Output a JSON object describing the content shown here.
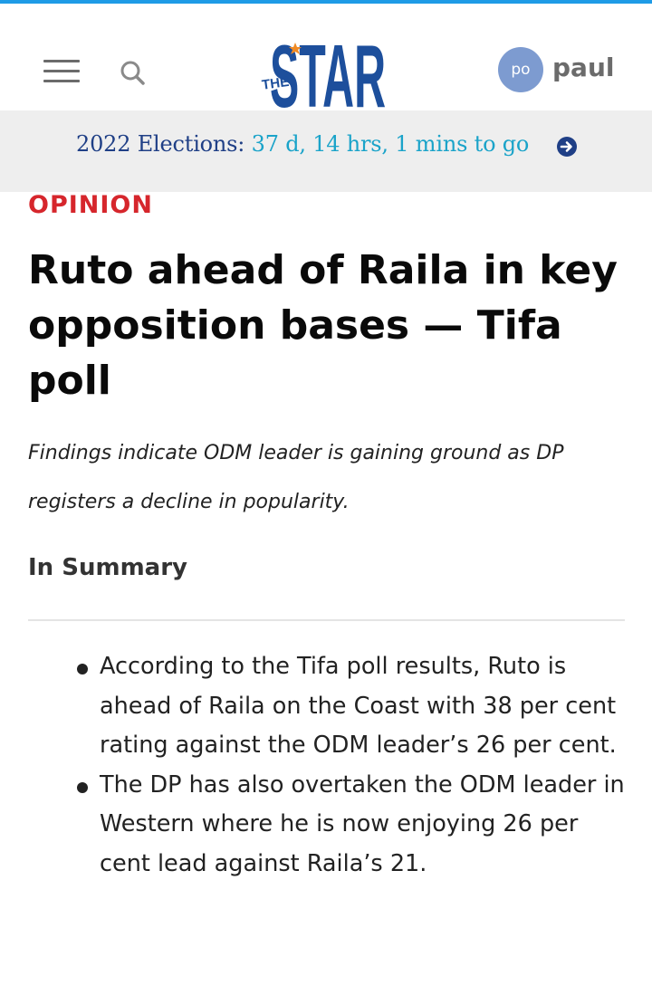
{
  "header": {
    "logo": {
      "small_text": "THE",
      "main_text": "STAR"
    },
    "user": {
      "initials": "po",
      "name": "paul"
    }
  },
  "election_banner": {
    "label": "2022 Elections:",
    "countdown": "37 d, 14 hrs, 1 mins to go"
  },
  "article": {
    "category": "OPINION",
    "headline": "Ruto ahead of Raila in key opposition bases — Tifa poll",
    "standfirst": "Findings indicate ODM leader is gaining ground as DP registers a decline in popularity.",
    "summary_heading": "In Summary",
    "summary_items": [
      "According to the Tifa poll results, Ruto is ahead of Raila on the Coast with 38 per cent rating against the ODM leader’s 26 per cent.",
      "The DP has also overtaken the ODM leader in Western where he is now enjoying 26 per cent lead against Raila’s 21."
    ]
  },
  "colors": {
    "top_accent": "#1e9be6",
    "logo_blue": "#1d4f9c",
    "logo_star": "#f08a24",
    "category_red": "#d6262c",
    "election_label": "#1f3f86",
    "election_countdown": "#1aa3c9",
    "avatar_bg": "#7d9bd0",
    "banner_bg": "#eeeeee"
  },
  "icons": {
    "menu": "hamburger-menu-icon",
    "search": "search-icon",
    "election_arrow": "arrow-right-circle-icon"
  }
}
